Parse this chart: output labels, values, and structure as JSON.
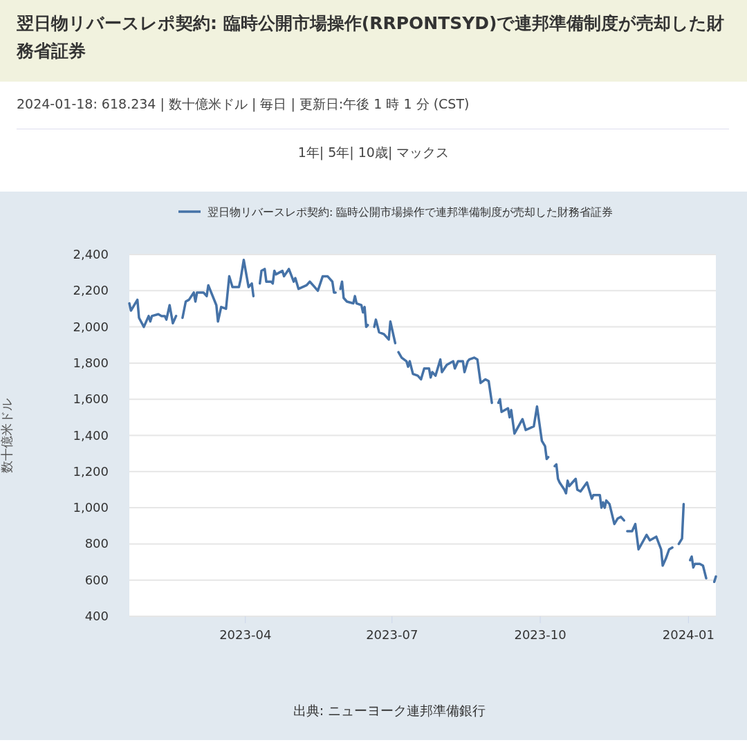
{
  "chart_data": {
    "type": "line",
    "title": "翌日物リバースレポ契約: 臨時公開市場操作(RRPONTSYD)で連邦準備制度が売却した財務省証券",
    "subtitle": "2024-01-18: 618.234 | 数十億米ドル | 毎日 | 更新日:午後 1 時 1 分 (CST)",
    "ylabel": "数十億米ドル",
    "annotations": [
      "1年| 5年| 10歳| マックス",
      "出典: ニューヨーク連邦準備銀行"
    ],
    "xlim": [
      "2023-01-19",
      "2024-01-18"
    ],
    "xticks": [
      "2023-04",
      "2023-07",
      "2023-10",
      "2024-01"
    ],
    "ylim": [
      400,
      2400
    ],
    "yticks": [
      {
        "value": 400,
        "label": "400"
      },
      {
        "value": 600,
        "label": "600"
      },
      {
        "value": 800,
        "label": "800"
      },
      {
        "value": 1000,
        "label": "1,000"
      },
      {
        "value": 1200,
        "label": "1,200"
      },
      {
        "value": 1400,
        "label": "1,400"
      },
      {
        "value": 1600,
        "label": "1,600"
      },
      {
        "value": 1800,
        "label": "1,800"
      },
      {
        "value": 2000,
        "label": "2,000"
      },
      {
        "value": 2200,
        "label": "2,200"
      },
      {
        "value": 2400,
        "label": "2,400"
      }
    ],
    "grid": "y",
    "legend": "top",
    "marker": "none",
    "line_style": "solid",
    "x": [
      "2023-01-19",
      "2023-01-20",
      "2023-01-24",
      "2023-01-25",
      "2023-01-28",
      "2023-01-31",
      "2023-02-01",
      "2023-02-02",
      "2023-02-06",
      "2023-02-08",
      "2023-02-10",
      "2023-02-11",
      "2023-02-13",
      "2023-02-15",
      "2023-02-17",
      "2023-02-19",
      "2023-02-21",
      "2023-02-23",
      "2023-02-25",
      "2023-02-28",
      "2023-03-01",
      "2023-03-02",
      "2023-03-06",
      "2023-03-08",
      "2023-03-09",
      "2023-03-14",
      "2023-03-15",
      "2023-03-16",
      "2023-03-17",
      "2023-03-20",
      "2023-03-22",
      "2023-03-24",
      "2023-03-28",
      "2023-03-29",
      "2023-03-31",
      "2023-04-03",
      "2023-04-05",
      "2023-04-06",
      "2023-04-08",
      "2023-04-10",
      "2023-04-11",
      "2023-04-13",
      "2023-04-14",
      "2023-04-17",
      "2023-04-18",
      "2023-04-19",
      "2023-04-20",
      "2023-04-22",
      "2023-04-24",
      "2023-04-25",
      "2023-04-28",
      "2023-05-01",
      "2023-05-02",
      "2023-05-04",
      "2023-05-09",
      "2023-05-11",
      "2023-05-13",
      "2023-05-16",
      "2023-05-19",
      "2023-05-22",
      "2023-05-25",
      "2023-05-26",
      "2023-05-27",
      "2023-05-28",
      "2023-05-30",
      "2023-05-31",
      "2023-06-01",
      "2023-06-03",
      "2023-06-07",
      "2023-06-08",
      "2023-06-09",
      "2023-06-12",
      "2023-06-13",
      "2023-06-14",
      "2023-06-15",
      "2023-06-16",
      "2023-06-18",
      "2023-06-20",
      "2023-06-21",
      "2023-06-23",
      "2023-06-26",
      "2023-06-29",
      "2023-06-30",
      "2023-07-03",
      "2023-07-04",
      "2023-07-05",
      "2023-07-07",
      "2023-07-10",
      "2023-07-11",
      "2023-07-12",
      "2023-07-14",
      "2023-07-17",
      "2023-07-19",
      "2023-07-20",
      "2023-07-21",
      "2023-07-24",
      "2023-07-25",
      "2023-07-26",
      "2023-07-28",
      "2023-07-31",
      "2023-08-01",
      "2023-08-04",
      "2023-08-08",
      "2023-08-09",
      "2023-08-11",
      "2023-08-14",
      "2023-08-15",
      "2023-08-17",
      "2023-08-18",
      "2023-08-21",
      "2023-08-23",
      "2023-08-25",
      "2023-08-28",
      "2023-08-30",
      "2023-09-01",
      "2023-09-03",
      "2023-09-05",
      "2023-09-06",
      "2023-09-07",
      "2023-09-11",
      "2023-09-12",
      "2023-09-13",
      "2023-09-15",
      "2023-09-20",
      "2023-09-22",
      "2023-09-27",
      "2023-09-29",
      "2023-10-02",
      "2023-10-04",
      "2023-10-05",
      "2023-10-06",
      "2023-10-08",
      "2023-10-10",
      "2023-10-11",
      "2023-10-12",
      "2023-10-13",
      "2023-10-16",
      "2023-10-17",
      "2023-10-18",
      "2023-10-19",
      "2023-10-23",
      "2023-10-24",
      "2023-10-26",
      "2023-10-30",
      "2023-11-01",
      "2023-11-02",
      "2023-11-03",
      "2023-11-07",
      "2023-11-08",
      "2023-11-09",
      "2023-11-10",
      "2023-11-11",
      "2023-11-13",
      "2023-11-16",
      "2023-11-18",
      "2023-11-20",
      "2023-11-22",
      "2023-11-23",
      "2023-11-24",
      "2023-11-27",
      "2023-11-29",
      "2023-12-01",
      "2023-12-06",
      "2023-12-08",
      "2023-12-12",
      "2023-12-15",
      "2023-12-16",
      "2023-12-18",
      "2023-12-20",
      "2023-12-22",
      "2023-12-24",
      "2023-12-26",
      "2023-12-28",
      "2023-12-29",
      "2023-12-31",
      "2024-01-02",
      "2024-01-03",
      "2024-01-04",
      "2024-01-05",
      "2024-01-08",
      "2024-01-10",
      "2024-01-12",
      "2024-01-14",
      "2024-01-17",
      "2024-01-18"
    ],
    "series": [
      {
        "name": "翌日物リバースレポ契約: 臨時公開市場操作で連邦準備制度が売却した財務省証券",
        "color": "#4572a7",
        "values": [
          2130,
          2090,
          2150,
          2050,
          2000,
          2060,
          2030,
          2060,
          2070,
          2060,
          2060,
          2040,
          2120,
          2020,
          2060,
          null,
          2050,
          2140,
          2150,
          2190,
          2140,
          2190,
          2190,
          2170,
          2230,
          2120,
          2030,
          2070,
          2110,
          2100,
          2280,
          2220,
          2220,
          2260,
          2370,
          2220,
          2240,
          2170,
          null,
          2240,
          2310,
          2320,
          2250,
          2250,
          2240,
          2310,
          2290,
          2300,
          2310,
          2280,
          2320,
          2250,
          2270,
          2210,
          2230,
          2250,
          2230,
          2200,
          2280,
          2280,
          2250,
          2190,
          2190,
          null,
          2210,
          2250,
          2160,
          2140,
          2130,
          2170,
          2130,
          2120,
          2080,
          2110,
          2000,
          2010,
          null,
          2000,
          2040,
          1970,
          1960,
          1930,
          2030,
          1910,
          null,
          1860,
          1830,
          1810,
          1780,
          1810,
          1740,
          1730,
          1710,
          1740,
          1770,
          1770,
          1720,
          1750,
          1730,
          1820,
          1750,
          1790,
          1810,
          1770,
          1810,
          1810,
          1750,
          1810,
          1820,
          1830,
          1820,
          1690,
          1710,
          1700,
          1580,
          null,
          1580,
          1600,
          1530,
          1550,
          1500,
          1540,
          1410,
          1490,
          1430,
          1450,
          1560,
          1370,
          1340,
          1270,
          1280,
          null,
          1230,
          1240,
          1160,
          1140,
          1100,
          1080,
          1150,
          1120,
          1160,
          1100,
          1090,
          1140,
          1080,
          1050,
          1070,
          1070,
          1000,
          1030,
          1000,
          1040,
          1020,
          910,
          940,
          950,
          930,
          null,
          870,
          870,
          910,
          770,
          850,
          820,
          840,
          770,
          680,
          720,
          770,
          780,
          null,
          800,
          830,
          1020,
          null,
          710,
          730,
          670,
          690,
          690,
          680,
          610,
          null,
          590,
          620
        ]
      }
    ]
  }
}
